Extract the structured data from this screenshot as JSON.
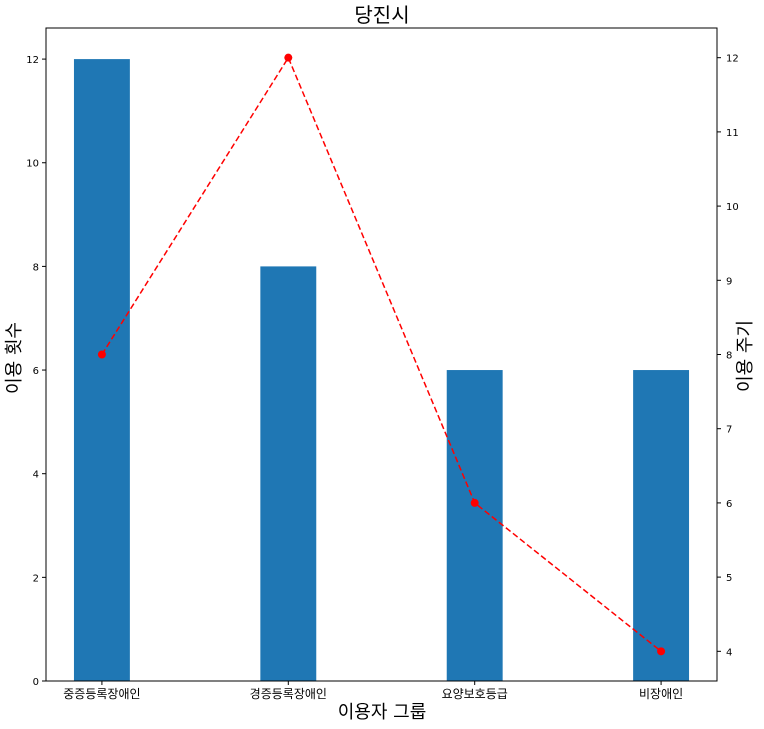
{
  "chart_data": {
    "type": "bar",
    "title": "당진시",
    "xlabel": "이용자 그룹",
    "ylabel": "이용 횟수",
    "y2label": "이용 주기",
    "categories": [
      "중증등록장애인",
      "경증등록장애인",
      "요양보호등급",
      "비장애인"
    ],
    "series": [
      {
        "type": "bar",
        "axis": "left",
        "values": [
          12,
          8,
          6,
          6
        ],
        "color": "#1f77b4"
      },
      {
        "type": "line",
        "axis": "right",
        "values": [
          8,
          12,
          6,
          4
        ],
        "color": "#ff0000",
        "style": "dashed",
        "marker": "circle"
      }
    ],
    "ylim": [
      0,
      12.6
    ],
    "y2lim": [
      3.6,
      12.4
    ],
    "yticks": [
      0,
      2,
      4,
      6,
      8,
      10,
      12
    ],
    "y2ticks": [
      4,
      5,
      6,
      7,
      8,
      9,
      10,
      11,
      12
    ],
    "grid": false
  }
}
